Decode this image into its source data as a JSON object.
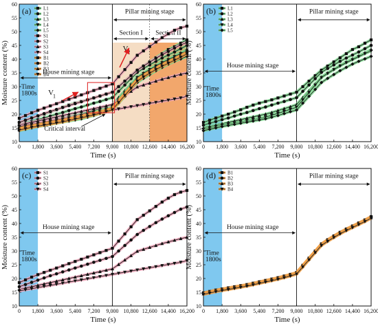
{
  "chart_data": [
    {
      "panel": "(a)",
      "type": "line",
      "xlabel": "Time (s)",
      "ylabel": "Moisture content (%)",
      "xlim": [
        0,
        16200
      ],
      "ylim": [
        10,
        60
      ],
      "x": [
        0,
        600,
        1200,
        1800,
        2400,
        3000,
        3600,
        4200,
        4800,
        5400,
        6000,
        6600,
        7200,
        7800,
        8400,
        9000,
        9600,
        10200,
        10800,
        11400,
        12000,
        12600,
        13200,
        13800,
        14400,
        15000,
        15600,
        16200
      ],
      "series": [
        {
          "name": "L1",
          "color": "#2e7d32",
          "values": [
            17.0,
            17.8,
            18.6,
            19.3,
            20.0,
            20.8,
            21.6,
            22.5,
            23.3,
            24.0,
            24.6,
            25.2,
            25.9,
            26.6,
            27.3,
            28.0,
            30.0,
            32.0,
            34.0,
            36.0,
            37.5,
            39.0,
            40.5,
            42.0,
            43.5,
            44.5,
            45.8,
            47.0
          ]
        },
        {
          "name": "L2",
          "color": "#2e7d32",
          "values": [
            16.0,
            16.7,
            17.3,
            18.0,
            18.6,
            19.3,
            20.0,
            20.6,
            21.3,
            22.0,
            22.6,
            23.3,
            24.0,
            24.6,
            25.3,
            26.0,
            28.3,
            30.6,
            32.9,
            35.2,
            36.6,
            37.9,
            39.2,
            40.4,
            41.5,
            42.6,
            43.8,
            45.0
          ]
        },
        {
          "name": "L3",
          "color": "#2e7d32",
          "values": [
            15.0,
            15.5,
            16.0,
            16.5,
            17.0,
            17.5,
            18.0,
            18.5,
            19.0,
            19.5,
            20.0,
            20.6,
            21.3,
            22.0,
            22.7,
            23.5,
            26.0,
            28.5,
            31.0,
            33.5,
            35.0,
            36.4,
            37.7,
            39.0,
            40.1,
            41.2,
            42.3,
            43.5
          ]
        },
        {
          "name": "L4",
          "color": "#2e7d32",
          "values": [
            14.5,
            15.0,
            15.5,
            16.0,
            16.4,
            16.8,
            17.2,
            17.6,
            18.0,
            18.4,
            18.9,
            19.6,
            20.3,
            21.0,
            21.8,
            22.5,
            25.2,
            27.9,
            30.6,
            33.3,
            34.8,
            36.2,
            37.5,
            38.7,
            39.8,
            40.9,
            42.0,
            43.0
          ]
        },
        {
          "name": "L5",
          "color": "#2e7d32",
          "values": [
            14.0,
            14.5,
            15.0,
            15.5,
            15.9,
            16.3,
            16.7,
            17.1,
            17.5,
            17.9,
            18.3,
            18.9,
            19.5,
            20.2,
            20.9,
            21.5,
            24.0,
            26.5,
            29.0,
            31.5,
            33.0,
            34.4,
            35.8,
            37.0,
            38.2,
            39.2,
            40.1,
            41.0
          ]
        },
        {
          "name": "S1",
          "color": "#b03a5b",
          "values": [
            18.5,
            19.5,
            20.5,
            21.4,
            22.2,
            23.0,
            23.8,
            24.6,
            25.4,
            26.2,
            27.0,
            27.8,
            28.6,
            29.4,
            30.2,
            31.0,
            33.6,
            36.2,
            38.8,
            41.4,
            43.0,
            44.6,
            46.2,
            47.8,
            49.2,
            50.5,
            51.4,
            52.0
          ]
        },
        {
          "name": "S2",
          "color": "#b03a5b",
          "values": [
            17.0,
            17.8,
            18.6,
            19.4,
            20.2,
            21.0,
            21.7,
            22.4,
            23.1,
            23.8,
            24.5,
            25.2,
            25.9,
            26.6,
            27.3,
            28.0,
            30.0,
            32.0,
            34.0,
            36.0,
            37.5,
            38.9,
            40.3,
            41.6,
            42.8,
            44.0,
            45.2,
            46.0
          ]
        },
        {
          "name": "S3",
          "color": "#b03a5b",
          "values": [
            16.0,
            16.5,
            17.0,
            17.5,
            18.0,
            18.5,
            19.0,
            19.5,
            20.0,
            20.5,
            21.0,
            21.5,
            22.0,
            22.5,
            23.0,
            23.5,
            25.1,
            26.7,
            28.3,
            29.9,
            30.6,
            31.3,
            32.0,
            32.7,
            33.3,
            33.9,
            34.5,
            35.0
          ]
        },
        {
          "name": "S4",
          "color": "#b03a5b",
          "values": [
            15.5,
            15.9,
            16.3,
            16.7,
            17.1,
            17.5,
            17.9,
            18.3,
            18.7,
            19.1,
            19.5,
            19.9,
            20.3,
            20.7,
            21.1,
            21.5,
            21.9,
            22.3,
            22.7,
            23.1,
            23.5,
            23.9,
            24.3,
            24.7,
            25.1,
            25.5,
            25.9,
            26.5
          ]
        },
        {
          "name": "B1",
          "color": "#e8842a",
          "values": [
            14.8,
            15.3,
            15.8,
            16.2,
            16.6,
            17.0,
            17.4,
            17.8,
            18.3,
            18.8,
            19.3,
            19.8,
            20.3,
            20.9,
            21.5,
            22.2,
            24.8,
            27.4,
            30.0,
            32.6,
            34.1,
            35.5,
            36.8,
            38.0,
            39.1,
            40.2,
            41.3,
            42.5
          ]
        },
        {
          "name": "B2",
          "color": "#e8842a",
          "values": [
            14.6,
            15.1,
            15.6,
            16.0,
            16.4,
            16.8,
            17.2,
            17.6,
            18.1,
            18.6,
            19.1,
            19.6,
            20.1,
            20.7,
            21.3,
            22.0,
            24.6,
            27.2,
            29.8,
            32.4,
            33.9,
            35.3,
            36.6,
            37.8,
            38.9,
            40.0,
            41.1,
            42.3
          ]
        },
        {
          "name": "B3",
          "color": "#e8842a",
          "values": [
            14.4,
            14.9,
            15.4,
            15.8,
            16.2,
            16.6,
            17.0,
            17.4,
            17.9,
            18.4,
            18.9,
            19.4,
            19.9,
            20.5,
            21.1,
            21.8,
            24.4,
            27.0,
            29.6,
            32.2,
            33.7,
            35.1,
            36.4,
            37.6,
            38.7,
            39.8,
            40.9,
            42.1
          ]
        },
        {
          "name": "B4",
          "color": "#e8842a",
          "values": [
            14.2,
            14.7,
            15.2,
            15.6,
            16.0,
            16.4,
            16.8,
            17.2,
            17.7,
            18.2,
            18.7,
            19.2,
            19.7,
            20.3,
            20.9,
            21.6,
            24.2,
            26.8,
            29.4,
            32.0,
            33.5,
            34.9,
            36.2,
            37.4,
            38.5,
            39.6,
            40.7,
            41.9
          ]
        }
      ],
      "annotations": {
        "time_box": [
          "Time",
          "1800s"
        ],
        "house_stage": "House mining stage",
        "pillar_stage": "Pillar mining stage",
        "section1": "Section I",
        "section2": "Section II",
        "critical": "Critical interval",
        "v1": "V",
        "v1_sub": "1",
        "v2": "V",
        "v2_sub": "2"
      }
    },
    {
      "panel": "(b)",
      "type": "line",
      "xlabel": "Time (s)",
      "ylabel": "Moisture content (%)",
      "xlim": [
        0,
        16200
      ],
      "ylim": [
        10,
        60
      ],
      "series_ref": [
        "L1",
        "L2",
        "L3",
        "L4",
        "L5"
      ],
      "annotations": {
        "time_box": [
          "Time",
          "1800s"
        ],
        "house_stage": "House mining stage",
        "pillar_stage": "Pillar mining stage"
      }
    },
    {
      "panel": "(c)",
      "type": "line",
      "xlabel": "Time (s)",
      "ylabel": "Moisture content (%)",
      "xlim": [
        0,
        16200
      ],
      "ylim": [
        10,
        60
      ],
      "series_ref": [
        "S1",
        "S2",
        "S3",
        "S4"
      ],
      "annotations": {
        "time_box": [
          "Time",
          "1800s"
        ],
        "house_stage": "House mining stage",
        "pillar_stage": "Pillar mining stage"
      }
    },
    {
      "panel": "(d)",
      "type": "line",
      "xlabel": "Time (s)",
      "ylabel": "Moisture content (%)",
      "xlim": [
        0,
        16200
      ],
      "ylim": [
        10,
        60
      ],
      "series_ref": [
        "B1",
        "B2",
        "B3",
        "B4"
      ],
      "annotations": {
        "time_box": [
          "Time",
          "1800s"
        ],
        "house_stage": "House mining stage",
        "pillar_stage": "Pillar mining stage"
      }
    }
  ],
  "axes": {
    "xticks": [
      "0",
      "1,800",
      "3,600",
      "5,400",
      "7,200",
      "9,000",
      "10,800",
      "12,600",
      "14,400",
      "16,200"
    ],
    "yticks": [
      "10",
      "15",
      "20",
      "25",
      "30",
      "35",
      "40",
      "45",
      "50",
      "55",
      "60"
    ]
  },
  "colors": {
    "time_box": "#7fc8ef",
    "section1": "#f5ddc4",
    "section2": "#f2a76c",
    "critical_box": "#e03030",
    "arrow_red": "#e02020",
    "halo_l": "#7fd88f",
    "halo_s": "#efa3b8",
    "halo_b": "#f0a048"
  }
}
